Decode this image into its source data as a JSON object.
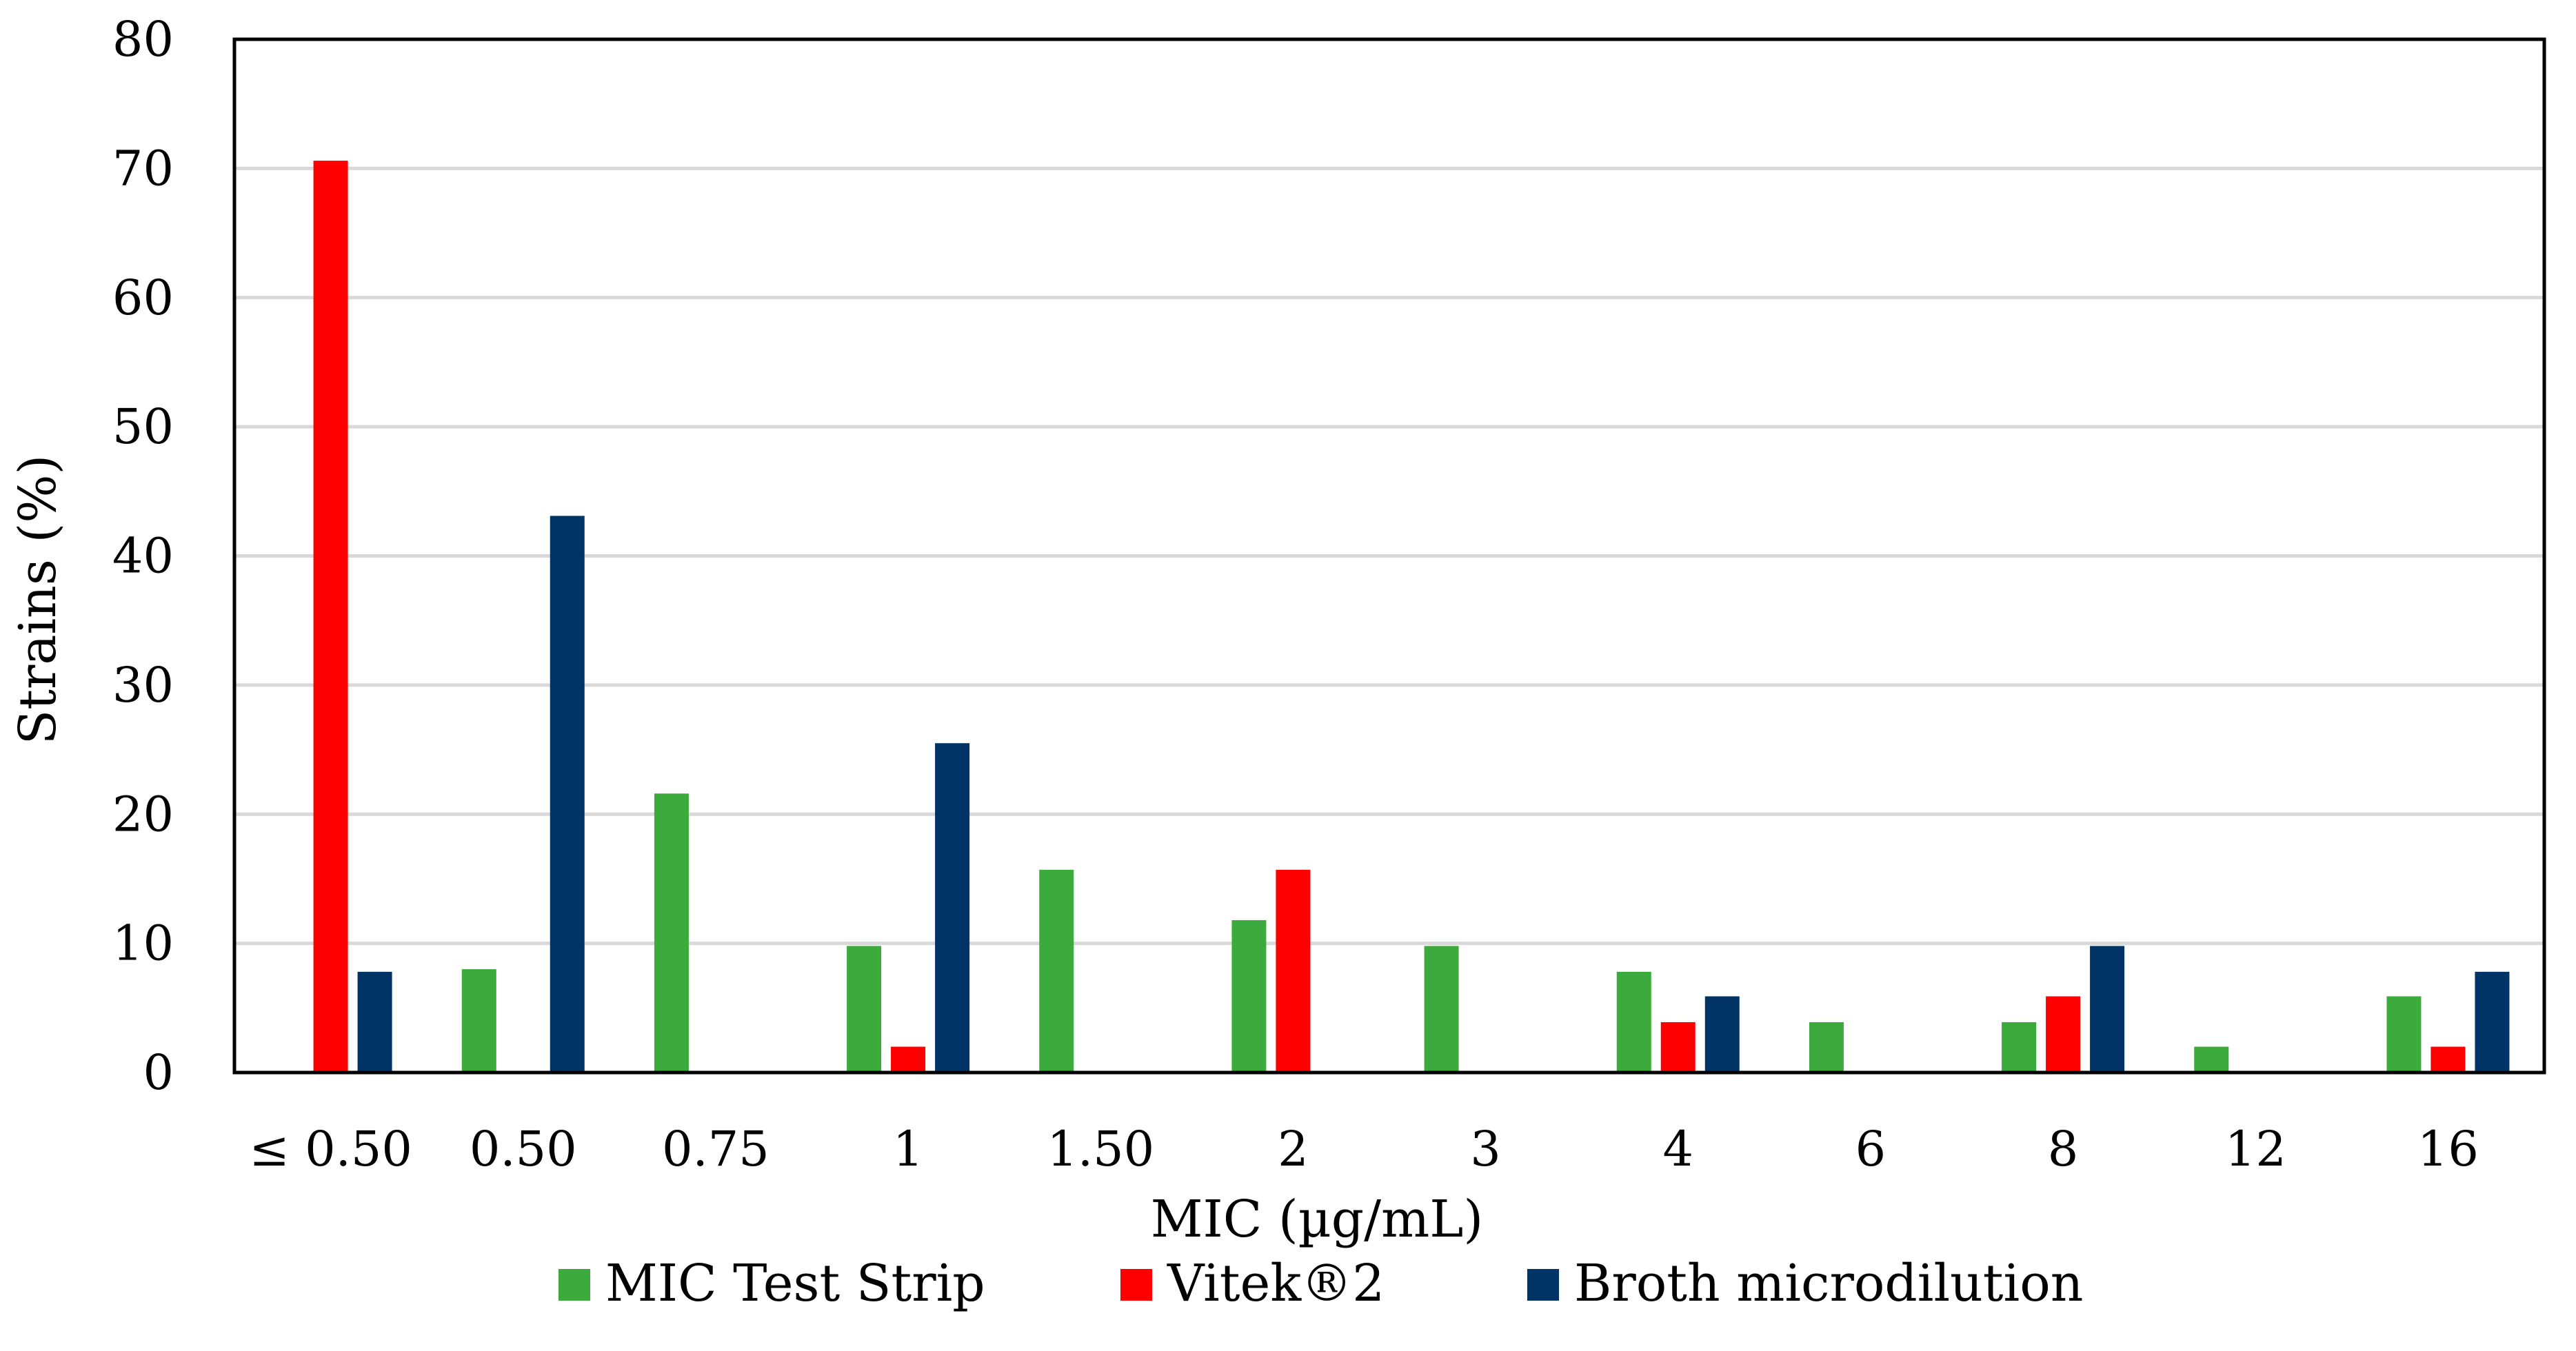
{
  "chart_data": {
    "type": "bar",
    "title": "",
    "xlabel": "MIC (µg/mL)",
    "ylabel": "Strains (%)",
    "ylim": [
      0,
      80
    ],
    "yticks": [
      0,
      10,
      20,
      30,
      40,
      50,
      60,
      70,
      80
    ],
    "grid": true,
    "legend_position": "bottom",
    "categories": [
      "≤ 0.50",
      "0.50",
      "0.75",
      "1",
      "1.50",
      "2",
      "3",
      "4",
      "6",
      "8",
      "12",
      "16"
    ],
    "series": [
      {
        "name": "MIC Test Strip",
        "color": "#3daa3d",
        "values": [
          0,
          8,
          21.6,
          9.8,
          15.7,
          11.8,
          9.8,
          7.8,
          3.9,
          3.9,
          2,
          5.9
        ]
      },
      {
        "name": "Vitek®2",
        "color": "#ff0000",
        "values": [
          70.6,
          0,
          0,
          2,
          0,
          15.7,
          0,
          3.9,
          0,
          5.9,
          0,
          2
        ]
      },
      {
        "name": "Broth microdilution",
        "color": "#003366",
        "values": [
          7.8,
          43.1,
          0,
          25.5,
          0,
          0,
          0,
          5.9,
          0,
          9.8,
          0,
          7.8
        ]
      }
    ]
  }
}
